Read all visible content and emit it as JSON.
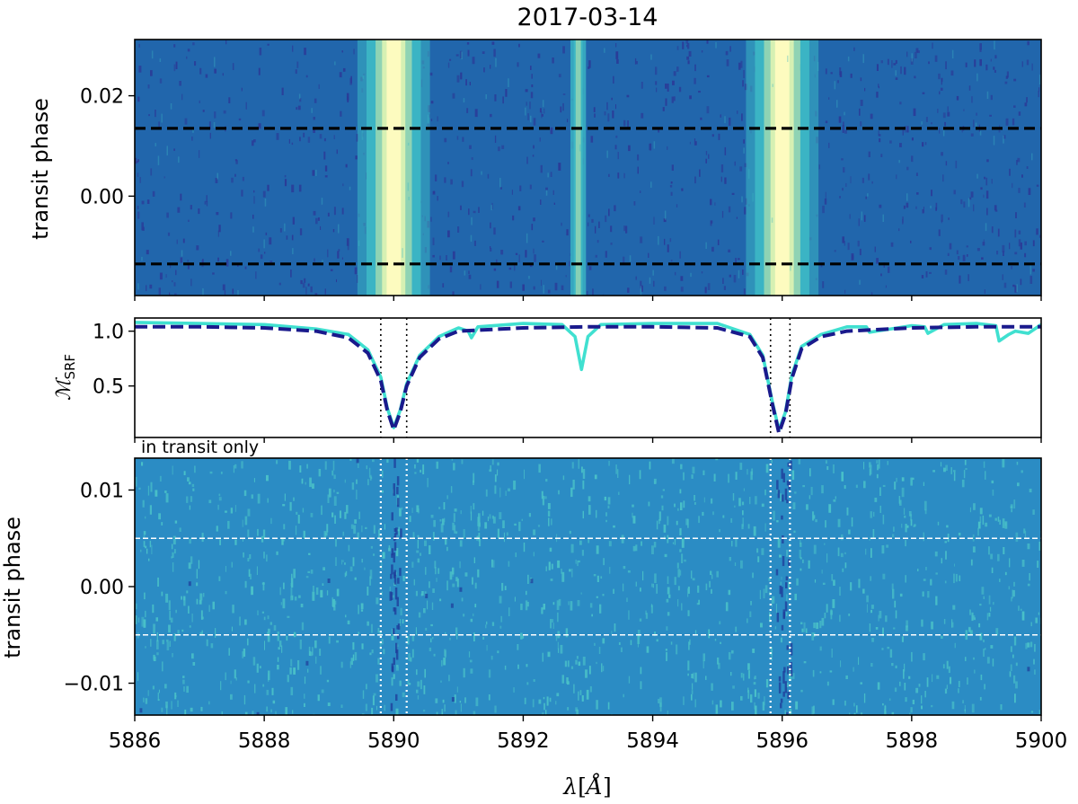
{
  "title": "2017-03-14",
  "annotation": "in transit only",
  "chart_data": [
    {
      "type": "heatmap",
      "panel": "top",
      "ylabel": "transit phase",
      "xlim": [
        5886,
        5900
      ],
      "ylim": [
        -0.0198,
        0.0312
      ],
      "yticks": [
        0.0,
        0.02
      ],
      "ytick_labels": [
        "0.00",
        "0.02"
      ],
      "transit_limits": [
        -0.0135,
        0.0135
      ],
      "bright_bands": [
        {
          "center": 5890.0,
          "width": 0.2
        },
        {
          "center": 5892.85,
          "width": 0.1
        },
        {
          "center": 5896.0,
          "width": 0.2
        }
      ],
      "colormap": [
        "#2b3a97",
        "#2166ac",
        "#3cb6c4",
        "#8fd3b4",
        "#fdfbbf"
      ]
    },
    {
      "type": "line",
      "panel": "middle",
      "ylabel": "$\\mathcal{M}_{\\rm SRF}$",
      "xlim": [
        5886,
        5900
      ],
      "ylim": [
        0.03,
        1.12
      ],
      "yticks": [
        0.5,
        1.0
      ],
      "ytick_labels": [
        "0.5",
        "1.0"
      ],
      "series": [
        {
          "color": "#40e0d0",
          "style": "solid",
          "x": [
            5886.0,
            5887.0,
            5888.0,
            5888.8,
            5889.3,
            5889.6,
            5889.8,
            5889.9,
            5890.0,
            5890.1,
            5890.2,
            5890.4,
            5890.7,
            5891.0,
            5891.15,
            5891.2,
            5891.3,
            5892.0,
            5892.6,
            5892.8,
            5892.9,
            5893.0,
            5893.2,
            5894.0,
            5895.0,
            5895.5,
            5895.7,
            5895.85,
            5895.95,
            5896.05,
            5896.15,
            5896.3,
            5896.6,
            5897.0,
            5897.3,
            5897.35,
            5898.0,
            5898.2,
            5898.25,
            5898.5,
            5899.0,
            5899.3,
            5899.35,
            5899.5,
            5899.6,
            5899.8,
            5900.0
          ],
          "y": [
            1.08,
            1.07,
            1.06,
            1.02,
            0.97,
            0.83,
            0.58,
            0.3,
            0.12,
            0.28,
            0.52,
            0.78,
            0.95,
            1.03,
            1.0,
            0.94,
            1.04,
            1.07,
            1.06,
            0.95,
            0.65,
            0.95,
            1.06,
            1.07,
            1.07,
            0.97,
            0.78,
            0.35,
            0.1,
            0.26,
            0.6,
            0.86,
            0.97,
            1.04,
            1.04,
            0.99,
            1.05,
            1.04,
            0.98,
            1.06,
            1.07,
            1.05,
            0.91,
            0.97,
            1.0,
            0.98,
            1.06
          ]
        },
        {
          "color": "#1a1a8c",
          "style": "dashed",
          "x": [
            5886.0,
            5887.0,
            5888.0,
            5888.8,
            5889.3,
            5889.6,
            5889.8,
            5889.9,
            5890.0,
            5890.1,
            5890.2,
            5890.4,
            5890.7,
            5891.0,
            5892.0,
            5893.0,
            5894.0,
            5895.0,
            5895.5,
            5895.7,
            5895.85,
            5895.95,
            5896.05,
            5896.15,
            5896.3,
            5896.6,
            5897.0,
            5898.0,
            5899.0,
            5900.0
          ],
          "y": [
            1.04,
            1.04,
            1.03,
            1.0,
            0.94,
            0.8,
            0.55,
            0.28,
            0.1,
            0.26,
            0.5,
            0.76,
            0.93,
            1.0,
            1.03,
            1.04,
            1.04,
            1.03,
            0.95,
            0.76,
            0.33,
            0.07,
            0.24,
            0.57,
            0.84,
            0.95,
            1.0,
            1.03,
            1.04,
            1.04
          ]
        }
      ],
      "vlines": [
        5889.8,
        5890.2,
        5895.82,
        5896.12
      ]
    },
    {
      "type": "heatmap",
      "panel": "bottom",
      "ylabel": "transit phase",
      "xlabel": "$\\lambda [\\AA]$",
      "xlim": [
        5886,
        5900
      ],
      "ylim": [
        -0.0133,
        0.0133
      ],
      "yticks": [
        -0.01,
        0.0,
        0.01
      ],
      "ytick_labels": [
        "−0.01",
        "0.00",
        "0.01"
      ],
      "xticks": [
        5886,
        5888,
        5890,
        5892,
        5894,
        5896,
        5898,
        5900
      ],
      "xtick_labels": [
        "5886",
        "5888",
        "5890",
        "5892",
        "5894",
        "5896",
        "5898",
        "5900"
      ],
      "hlines": [
        -0.005,
        0.005
      ],
      "vlines": [
        5889.8,
        5890.2,
        5895.82,
        5896.12
      ],
      "colormap": [
        "#1f3b9a",
        "#2b8cc4",
        "#49c0c8"
      ]
    }
  ]
}
